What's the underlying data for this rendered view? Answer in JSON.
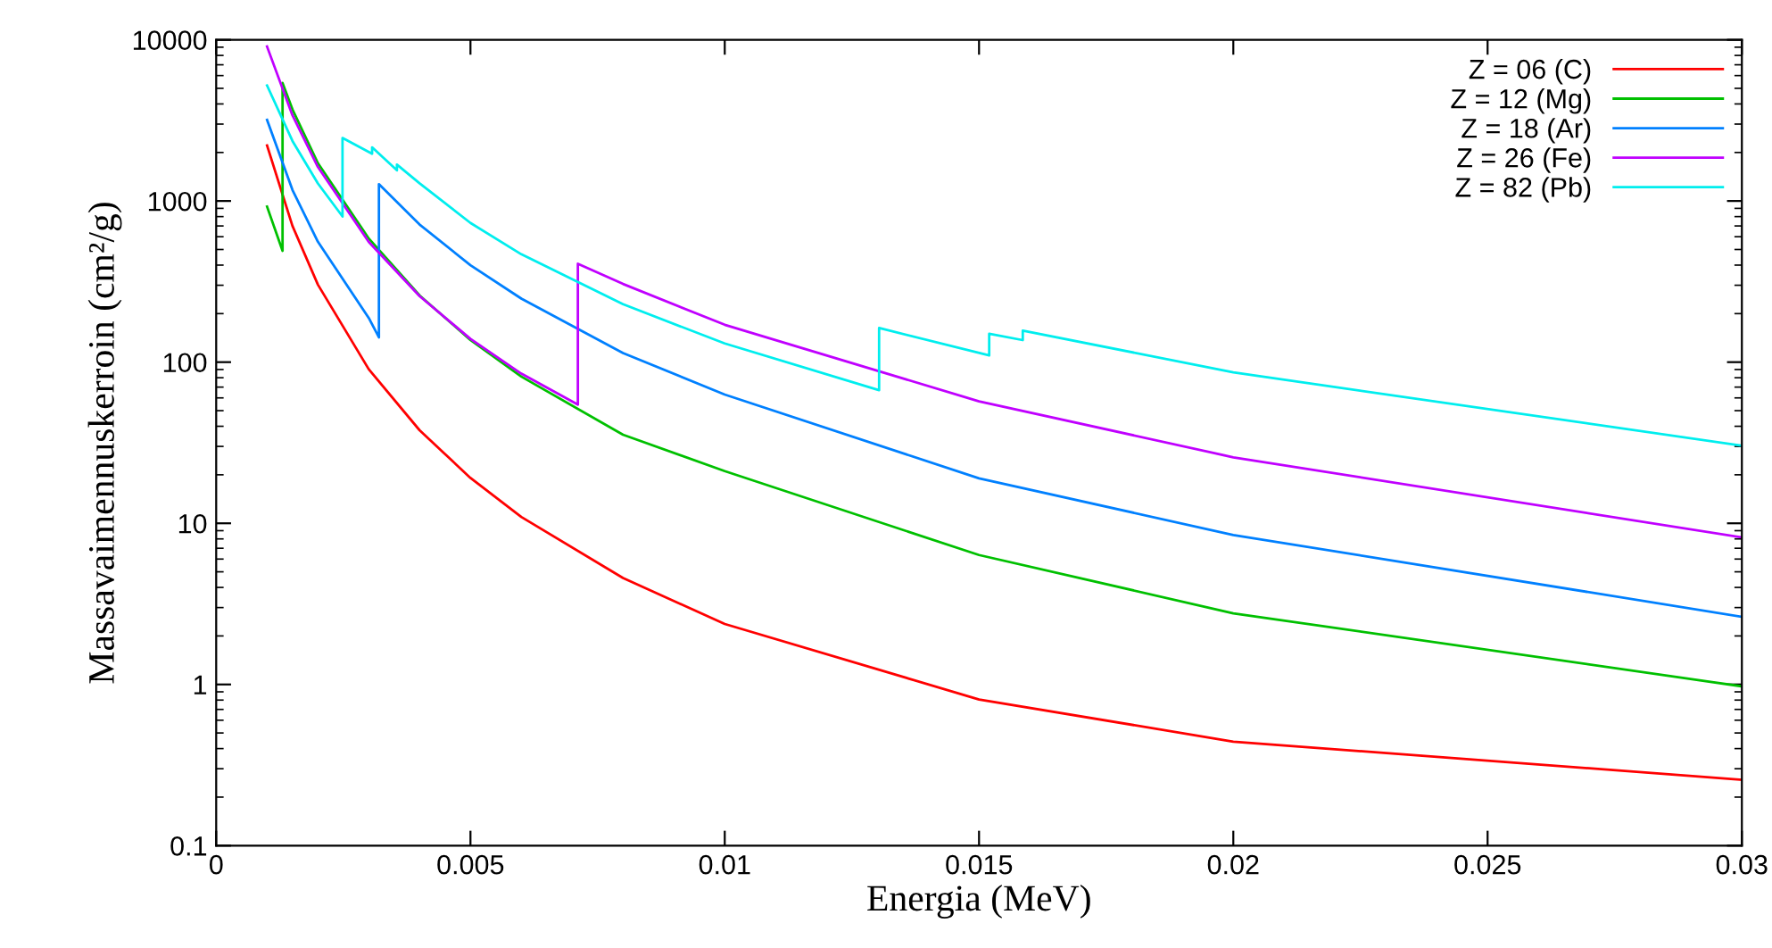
{
  "chart_data": {
    "type": "line",
    "xlabel": "Energia (MeV)",
    "ylabel": "Massavaimennuskerroin (cm²/g)",
    "xlim": [
      0,
      0.03
    ],
    "xticks": [
      0,
      0.005,
      0.01,
      0.015,
      0.02,
      0.025,
      0.03
    ],
    "ylim": [
      0.1,
      10000
    ],
    "yticks": [
      0.1,
      1,
      10,
      100,
      1000,
      10000
    ],
    "log": "y",
    "grid": false,
    "legend": "top right",
    "series": [
      {
        "name": "Z = 06 (C)",
        "color": "#ff0000",
        "x": [
          0.001,
          0.0015,
          0.002,
          0.003,
          0.004,
          0.005,
          0.006,
          0.008,
          0.01,
          0.015,
          0.02,
          0.03
        ],
        "values": [
          2211,
          700.2,
          302.6,
          90.33,
          37.78,
          19.12,
          10.95,
          4.576,
          2.373,
          0.8071,
          0.442,
          0.2562
        ]
      },
      {
        "name": "Z = 12 (Mg)",
        "color": "#00c000",
        "x": [
          0.001,
          0.001305,
          0.001305,
          0.0015,
          0.002,
          0.003,
          0.004,
          0.005,
          0.006,
          0.008,
          0.01,
          0.015,
          0.02,
          0.03
        ],
        "values": [
          922.5,
          490.6,
          5397,
          3701,
          1717,
          585,
          259.3,
          137.2,
          81.37,
          35.45,
          21.07,
          6.358,
          2.763,
          0.9732
        ]
      },
      {
        "name": "Z = 18 (Ar)",
        "color": "#0080ff",
        "x": [
          0.001,
          0.0015,
          0.002,
          0.003,
          0.0032,
          0.0032,
          0.004,
          0.005,
          0.006,
          0.008,
          0.01,
          0.015,
          0.02,
          0.03
        ],
        "values": [
          3184,
          1170,
          558.4,
          188,
          142.4,
          1272,
          714,
          399.7,
          248,
          113.8,
          62.9,
          19,
          8.46,
          2.63
        ]
      },
      {
        "name": "Z = 26 (Fe)",
        "color": "#c000ff",
        "x": [
          0.001,
          0.0015,
          0.002,
          0.003,
          0.004,
          0.005,
          0.006,
          0.007112,
          0.007112,
          0.008,
          0.01,
          0.015,
          0.02,
          0.03
        ],
        "values": [
          9085,
          3399,
          1626,
          557.6,
          256.7,
          139.5,
          84.84,
          54.5,
          407.6,
          305.6,
          170.6,
          57.08,
          25.68,
          8.176
        ]
      },
      {
        "name": "Z = 82 (Pb)",
        "color": "#00eeee",
        "x": [
          0.001,
          0.0015,
          0.002,
          0.002484,
          0.002484,
          0.003066,
          0.003066,
          0.003554,
          0.003554,
          0.004,
          0.005,
          0.006,
          0.008,
          0.01,
          0.013035,
          0.013035,
          0.0152,
          0.0152,
          0.01586,
          0.01586,
          0.02,
          0.03
        ],
        "values": [
          5210,
          2356,
          1285,
          801,
          2460,
          1965,
          2152,
          1551,
          1683,
          1287,
          730.4,
          467.2,
          228.7,
          130.6,
          67,
          162.8,
          110,
          150,
          137,
          157,
          86.36,
          30.32
        ]
      }
    ]
  }
}
